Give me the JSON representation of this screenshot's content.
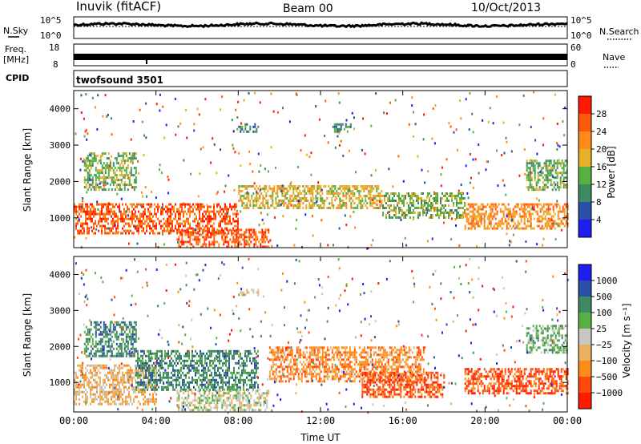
{
  "header": {
    "station": "Inuvik (fitACF)",
    "beam": "Beam 00",
    "date": "10/Oct/2013"
  },
  "strip_nsky": {
    "label": "N.Sky",
    "right_label": "N.Search",
    "ticks_left": [
      "10^5",
      "10^0"
    ],
    "ticks_right": [
      "10^5",
      "10^0"
    ]
  },
  "strip_freq": {
    "label_line1": "Freq.",
    "label_line2": "[MHz]",
    "ticks_left": [
      "18",
      "8"
    ],
    "right_label": "Nave",
    "ticks_right": [
      "60",
      "0"
    ]
  },
  "strip_cpid": {
    "label": "CPID",
    "program": "twofsound 3501"
  },
  "colors": {
    "power": [
      "#1e1ef0",
      "#2a4fa8",
      "#3f8a63",
      "#58b042",
      "#e6b02a",
      "#ff8c1a",
      "#ff5a0a",
      "#ff1a00"
    ],
    "velocity": [
      "#ff1a00",
      "#ff4a0a",
      "#ff8c1a",
      "#e8b060",
      "#c8c8c0",
      "#58b042",
      "#3f8a63",
      "#2a4fa8",
      "#1e1ef0"
    ]
  },
  "chart_data": [
    {
      "type": "heatmap",
      "name": "power",
      "x_axis": {
        "label": "Time UT",
        "range": [
          "00:00",
          "24:00"
        ],
        "ticks": [
          "00:00",
          "04:00",
          "08:00",
          "12:00",
          "16:00",
          "20:00",
          "00:00"
        ]
      },
      "ylabel": "Slant Range [km]",
      "ylim": [
        180,
        4500
      ],
      "yticks": [
        1000,
        2000,
        3000,
        4000
      ],
      "colorbar": {
        "label": "Power [dB]",
        "ticks": [
          4,
          8,
          12,
          16,
          20,
          24,
          28
        ],
        "range": [
          0,
          32
        ]
      },
      "bands": [
        {
          "t0": 0.0,
          "t1": 8.0,
          "r0": 600,
          "r1": 1400,
          "value": 26
        },
        {
          "t0": 5.0,
          "t1": 9.5,
          "r0": 200,
          "r1": 700,
          "value": 29
        },
        {
          "t0": 8.0,
          "t1": 15.0,
          "r0": 1300,
          "r1": 1900,
          "value": 20
        },
        {
          "t0": 15.0,
          "t1": 19.0,
          "r0": 1000,
          "r1": 1700,
          "value": 14
        },
        {
          "t0": 19.0,
          "t1": 24.0,
          "r0": 700,
          "r1": 1400,
          "value": 24
        },
        {
          "t0": 22.0,
          "t1": 24.0,
          "r0": 1800,
          "r1": 2600,
          "value": 12
        },
        {
          "t0": 0.5,
          "t1": 3.0,
          "r0": 1800,
          "r1": 2800,
          "value": 14
        },
        {
          "t0": 8.0,
          "t1": 9.0,
          "r0": 3400,
          "r1": 3600,
          "value": 10
        },
        {
          "t0": 12.5,
          "t1": 13.5,
          "r0": 3400,
          "r1": 3600,
          "value": 8
        }
      ]
    },
    {
      "type": "heatmap",
      "name": "velocity",
      "x_axis": {
        "label": "Time UT",
        "range": [
          "00:00",
          "24:00"
        ],
        "ticks": [
          "00:00",
          "04:00",
          "08:00",
          "12:00",
          "16:00",
          "20:00",
          "00:00"
        ]
      },
      "ylabel": "Slant Range [km]",
      "ylim": [
        180,
        4500
      ],
      "yticks": [
        1000,
        2000,
        3000,
        4000
      ],
      "colorbar": {
        "label": "Velocity [m s⁻¹]",
        "ticks": [
          "1000",
          "500",
          "100",
          "25",
          "−25",
          "−100",
          "−500",
          "−1000"
        ]
      },
      "bands": [
        {
          "t0": 0.0,
          "t1": 4.0,
          "r0": 400,
          "r1": 1500,
          "value": 3
        },
        {
          "t0": 3.0,
          "t1": 9.0,
          "r0": 800,
          "r1": 1900,
          "value": 6
        },
        {
          "t0": 5.0,
          "t1": 9.5,
          "r0": 200,
          "r1": 800,
          "value": 4
        },
        {
          "t0": 9.5,
          "t1": 17.0,
          "r0": 1000,
          "r1": 2000,
          "value": 2
        },
        {
          "t0": 14.0,
          "t1": 18.0,
          "r0": 600,
          "r1": 1300,
          "value": 1
        },
        {
          "t0": 19.0,
          "t1": 24.0,
          "r0": 700,
          "r1": 1400,
          "value": 1
        },
        {
          "t0": 22.0,
          "t1": 24.0,
          "r0": 1800,
          "r1": 2600,
          "value": 5
        },
        {
          "t0": 0.5,
          "t1": 3.0,
          "r0": 1700,
          "r1": 2700,
          "value": 6
        },
        {
          "t0": 8.0,
          "t1": 9.0,
          "r0": 3400,
          "r1": 3600,
          "value": 4
        }
      ]
    }
  ]
}
